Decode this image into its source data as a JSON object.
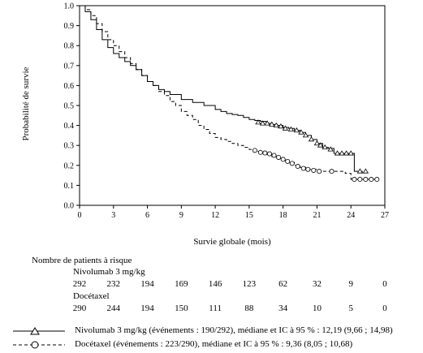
{
  "chart_data": {
    "type": "line",
    "subtype": "kaplan-meier step",
    "title": "",
    "xlabel": "Survie globale (mois)",
    "ylabel": "Probabilité de survie",
    "xlim": [
      0,
      27
    ],
    "ylim": [
      0,
      1.0
    ],
    "x_ticks": [
      0,
      3,
      6,
      9,
      12,
      15,
      18,
      21,
      24,
      27
    ],
    "y_ticks": [
      0.0,
      0.1,
      0.2,
      0.3,
      0.4,
      0.5,
      0.6,
      0.7,
      0.8,
      0.9,
      1.0
    ],
    "grid": false,
    "series": [
      {
        "name": "Nivolumab 3 mg/kg",
        "line_style": "solid",
        "censor_marker": "triangle",
        "x": [
          0,
          0.5,
          1,
          1.5,
          2,
          2.5,
          3,
          3.5,
          4,
          4.5,
          5,
          5.5,
          6,
          6.5,
          7,
          7.5,
          8,
          9,
          10,
          11,
          12,
          12.5,
          13,
          13.5,
          14,
          14.5,
          15,
          15.5,
          16,
          16.5,
          17,
          17.5,
          18,
          18.5,
          19,
          19.5,
          20,
          20.5,
          21,
          21.5,
          22,
          22.5,
          23,
          23.5,
          24,
          24.3,
          25
        ],
        "y": [
          1.0,
          0.97,
          0.93,
          0.88,
          0.83,
          0.79,
          0.76,
          0.74,
          0.72,
          0.7,
          0.68,
          0.65,
          0.62,
          0.6,
          0.58,
          0.57,
          0.555,
          0.53,
          0.515,
          0.5,
          0.48,
          0.47,
          0.46,
          0.455,
          0.45,
          0.44,
          0.43,
          0.425,
          0.42,
          0.41,
          0.405,
          0.4,
          0.39,
          0.385,
          0.375,
          0.365,
          0.35,
          0.33,
          0.31,
          0.29,
          0.285,
          0.26,
          0.26,
          0.26,
          0.26,
          0.17,
          0.16
        ],
        "censored_x": [
          15.8,
          16.2,
          16.6,
          17.0,
          17.4,
          17.8,
          18.2,
          18.7,
          19.2,
          19.6,
          20.0,
          20.5,
          21.0,
          21.3,
          21.7,
          22.2,
          22.8,
          23.2,
          23.6,
          24.0,
          24.8,
          25.3
        ],
        "censored_y": [
          0.415,
          0.41,
          0.41,
          0.405,
          0.4,
          0.395,
          0.385,
          0.38,
          0.375,
          0.365,
          0.35,
          0.33,
          0.31,
          0.3,
          0.29,
          0.28,
          0.26,
          0.26,
          0.26,
          0.26,
          0.17,
          0.17
        ]
      },
      {
        "name": "Docétaxel",
        "line_style": "dashed",
        "censor_marker": "circle",
        "x": [
          0,
          0.5,
          1,
          1.5,
          2,
          2.5,
          3,
          3.5,
          4,
          4.5,
          5,
          5.5,
          6,
          6.5,
          7,
          7.5,
          8,
          8.5,
          9,
          9.5,
          10,
          10.5,
          11,
          11.5,
          12,
          12.5,
          13,
          13.5,
          14,
          14.5,
          15,
          15.5,
          16,
          16.5,
          17,
          17.5,
          18,
          18.5,
          19,
          19.5,
          20,
          21,
          22,
          23,
          23.5,
          24,
          25,
          26.5
        ],
        "y": [
          1.0,
          0.98,
          0.95,
          0.91,
          0.87,
          0.83,
          0.8,
          0.77,
          0.74,
          0.71,
          0.68,
          0.65,
          0.62,
          0.6,
          0.57,
          0.55,
          0.52,
          0.5,
          0.47,
          0.45,
          0.43,
          0.4,
          0.38,
          0.36,
          0.34,
          0.33,
          0.32,
          0.31,
          0.3,
          0.29,
          0.28,
          0.27,
          0.265,
          0.255,
          0.245,
          0.235,
          0.225,
          0.215,
          0.2,
          0.19,
          0.18,
          0.17,
          0.17,
          0.17,
          0.16,
          0.13,
          0.13,
          0.13
        ],
        "censored_x": [
          15.5,
          16.0,
          16.4,
          16.8,
          17.2,
          17.6,
          18.0,
          18.4,
          18.8,
          19.3,
          19.8,
          20.2,
          20.7,
          21.2,
          22.3,
          24.3,
          24.8,
          25.3,
          25.8,
          26.3
        ],
        "censored_y": [
          0.275,
          0.265,
          0.262,
          0.258,
          0.25,
          0.24,
          0.23,
          0.22,
          0.21,
          0.195,
          0.185,
          0.18,
          0.175,
          0.17,
          0.17,
          0.13,
          0.13,
          0.13,
          0.13,
          0.13
        ]
      }
    ]
  },
  "risk_table": {
    "title": "Nombre de patients à risque",
    "groups": [
      {
        "label": "Nivolumab 3 mg/kg",
        "counts": [
          "292",
          "232",
          "194",
          "169",
          "146",
          "123",
          "62",
          "32",
          "9",
          "0"
        ]
      },
      {
        "label": "Docétaxel",
        "counts": [
          "290",
          "244",
          "194",
          "150",
          "111",
          "88",
          "34",
          "10",
          "5",
          "0"
        ]
      }
    ]
  },
  "legend": {
    "items": [
      {
        "label": "Nivolumab 3 mg/kg (événements : 190/292), médiane et IC à 95 % : 12,19 (9,66 ; 14,98)",
        "line_style": "solid",
        "marker": "triangle"
      },
      {
        "label": "Docétaxel (événements : 223/290), médiane et IC à 95 % : 9,36 (8,05 ; 10,68)",
        "line_style": "dashed",
        "marker": "circle"
      }
    ]
  }
}
